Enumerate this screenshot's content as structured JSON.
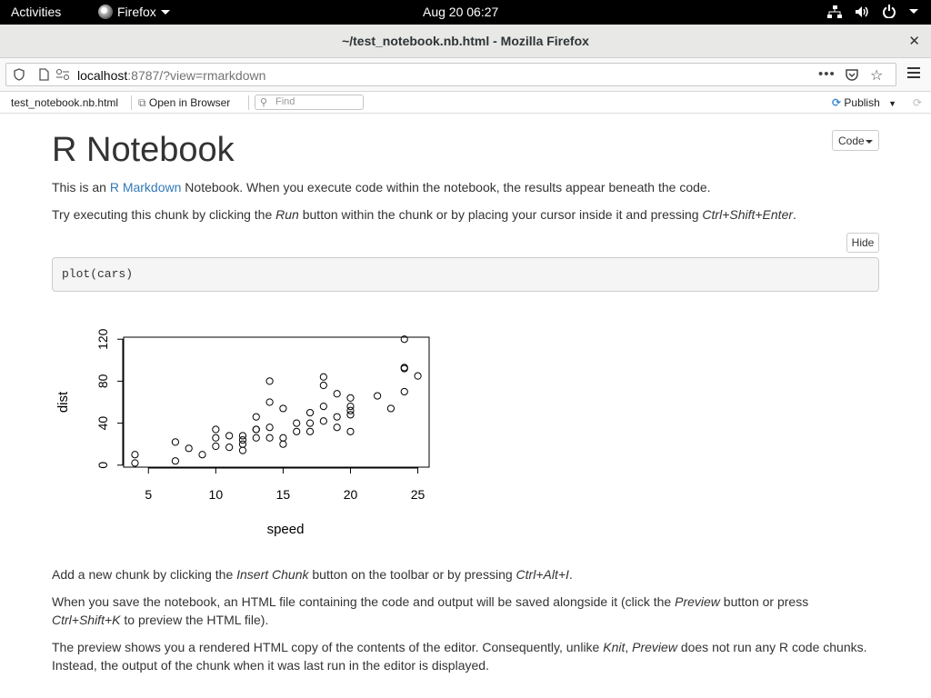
{
  "topbar": {
    "activities": "Activities",
    "app_name": "Firefox",
    "clock": "Aug 20  06:27"
  },
  "window": {
    "title": "~/test_notebook.nb.html - Mozilla Firefox"
  },
  "navbar": {
    "url_host": "localhost",
    "url_rest": ":8787/?view=rmarkdown"
  },
  "rtoolbar": {
    "file": "test_notebook.nb.html",
    "open_in_browser": "Open in Browser",
    "find_placeholder": "Find",
    "publish": "Publish"
  },
  "notebook": {
    "title": "R Notebook",
    "code_button": "Code",
    "hide_button": "Hide",
    "p1_before": "This is an ",
    "p1_link": "R Markdown",
    "p1_after": " Notebook. When you execute code within the notebook, the results appear beneath the code.",
    "p2_a": "Try executing this chunk by clicking the ",
    "p2_b": "Run",
    "p2_c": " button within the chunk or by placing your cursor inside it and pressing ",
    "p2_d": "Ctrl+Shift+Enter",
    "p2_e": ".",
    "code": "plot(cars)",
    "p3_a": "Add a new chunk by clicking the ",
    "p3_b": "Insert Chunk",
    "p3_c": " button on the toolbar or by pressing ",
    "p3_d": "Ctrl+Alt+I",
    "p3_e": ".",
    "p4_a": "When you save the notebook, an HTML file containing the code and output will be saved alongside it (click the ",
    "p4_b": "Preview",
    "p4_c": " button or press ",
    "p4_d": "Ctrl+Shift+K",
    "p4_e": " to preview the HTML file).",
    "p5_a": "The preview shows you a rendered HTML copy of the contents of the editor. Consequently, unlike ",
    "p5_b": "Knit",
    "p5_c": ", ",
    "p5_d": "Preview",
    "p5_e": " does not run any R code chunks. Instead, the output of the chunk when it was last run in the editor is displayed."
  },
  "chart_data": {
    "type": "scatter",
    "xlabel": "speed",
    "ylabel": "dist",
    "xlim": [
      3.16,
      25.84
    ],
    "ylim": [
      -1.92,
      121.92
    ],
    "xticks": [
      5,
      10,
      15,
      20,
      25
    ],
    "yticks": [
      0,
      40,
      80,
      120
    ],
    "x": [
      4,
      4,
      7,
      7,
      8,
      9,
      10,
      10,
      10,
      11,
      11,
      12,
      12,
      12,
      12,
      13,
      13,
      13,
      13,
      14,
      14,
      14,
      14,
      15,
      15,
      15,
      16,
      16,
      17,
      17,
      17,
      18,
      18,
      18,
      18,
      19,
      19,
      19,
      20,
      20,
      20,
      20,
      20,
      22,
      23,
      24,
      24,
      24,
      24,
      25
    ],
    "y": [
      2,
      10,
      4,
      22,
      16,
      10,
      18,
      26,
      34,
      17,
      28,
      14,
      20,
      24,
      28,
      26,
      34,
      34,
      46,
      26,
      36,
      60,
      80,
      20,
      26,
      54,
      32,
      40,
      32,
      40,
      50,
      42,
      56,
      76,
      84,
      36,
      46,
      68,
      32,
      48,
      52,
      56,
      64,
      66,
      54,
      70,
      92,
      93,
      120,
      85
    ]
  }
}
